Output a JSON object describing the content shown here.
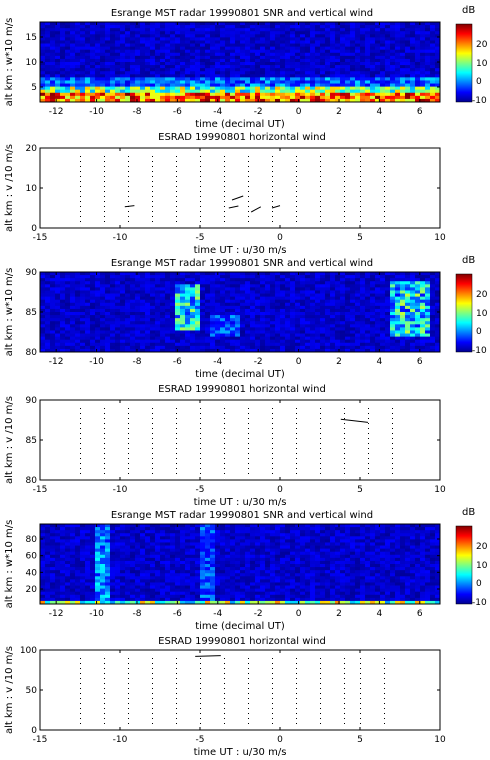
{
  "chart_data": [
    {
      "type": "heatmap",
      "title": "Esrange MST radar 19990801  SNR and vertical wind",
      "xlabel": "time (decimal UT)",
      "ylabel": "alt km : w*10  m/s",
      "xlim": [
        -12.8,
        7
      ],
      "ylim": [
        2,
        18
      ],
      "xticks": [
        "-12",
        "-10",
        "-8",
        "-6",
        "-4",
        "-2",
        "0",
        "2",
        "4",
        "6"
      ],
      "yticks": [
        "5",
        "10",
        "15"
      ],
      "colorbar": {
        "unit": "dB",
        "range": [
          -10,
          30
        ],
        "ticks": [
          "20",
          "10",
          "0",
          "-10"
        ]
      },
      "description_bands": [
        {
          "alt_from": 3,
          "alt_to": 5,
          "snr": 20
        },
        {
          "alt_from": 5,
          "alt_to": 7,
          "snr": 5
        },
        {
          "alt_from": 7,
          "alt_to": 18,
          "snr": -8
        }
      ]
    },
    {
      "type": "line",
      "title": "ESRAD 19990801 horizontal wind",
      "xlabel": "time  UT : u/30   m/s",
      "ylabel": "alt km : v /10  m/s",
      "xlim": [
        -15,
        10
      ],
      "ylim": [
        0,
        20
      ],
      "xticks": [
        "-15",
        "-10",
        "-5",
        "0",
        "5",
        "10"
      ],
      "yticks": [
        "0",
        "10",
        "20"
      ],
      "profile_times": [
        -12.5,
        -11,
        -9.5,
        -8,
        -6.5,
        -5,
        -3.5,
        -2,
        -0.5,
        1,
        2.5,
        4,
        5,
        6.5
      ]
    },
    {
      "type": "heatmap",
      "title": "Esrange MST radar 19990801  SNR and vertical wind",
      "xlabel": "time (decimal UT)",
      "ylabel": "alt km : w*10  m/s",
      "xlim": [
        -12.8,
        7
      ],
      "ylim": [
        80,
        90
      ],
      "xticks": [
        "-12",
        "-10",
        "-8",
        "-6",
        "-4",
        "-2",
        "0",
        "2",
        "4",
        "6"
      ],
      "yticks": [
        "80",
        "85",
        "90"
      ],
      "colorbar": {
        "unit": "dB",
        "range": [
          -10,
          30
        ],
        "ticks": [
          "20",
          "10",
          "0",
          "-10"
        ]
      }
    },
    {
      "type": "line",
      "title": "ESRAD 19990801 horizontal wind",
      "xlabel": "time  UT : u/30   m/s",
      "ylabel": "alt km : v /10  m/s",
      "xlim": [
        -15,
        10
      ],
      "ylim": [
        80,
        90
      ],
      "xticks": [
        "-15",
        "-10",
        "-5",
        "0",
        "5",
        "10"
      ],
      "yticks": [
        "80",
        "85",
        "90"
      ],
      "profile_times": [
        -12.5,
        -11,
        -9.5,
        -8,
        -6.5,
        -5,
        -3.5,
        -2,
        -0.5,
        1,
        2.5,
        4,
        5.5,
        7
      ]
    },
    {
      "type": "heatmap",
      "title": "Esrange MST radar 19990801  SNR and vertical wind",
      "xlabel": "time (decimal UT)",
      "ylabel": "alt km : w*10  m/s",
      "xlim": [
        -12.8,
        7
      ],
      "ylim": [
        2,
        98
      ],
      "xticks": [
        "-12",
        "-10",
        "-8",
        "-6",
        "-4",
        "-2",
        "0",
        "2",
        "4",
        "6"
      ],
      "yticks": [
        "20",
        "40",
        "60",
        "80"
      ],
      "colorbar": {
        "unit": "dB",
        "range": [
          -10,
          30
        ],
        "ticks": [
          "20",
          "10",
          "0",
          "-10"
        ]
      }
    },
    {
      "type": "line",
      "title": "ESRAD 19990801 horizontal wind",
      "xlabel": "time  UT : u/30   m/s",
      "ylabel": "alt km : v /10  m/s",
      "xlim": [
        -15,
        10
      ],
      "ylim": [
        0,
        100
      ],
      "xticks": [
        "-15",
        "-10",
        "-5",
        "0",
        "5",
        "10"
      ],
      "yticks": [
        "0",
        "50",
        "100"
      ],
      "profile_times": [
        -12.5,
        -11,
        -9.5,
        -8,
        -6.5,
        -5,
        -3.5,
        -2,
        -0.5,
        1,
        2.5,
        4,
        5,
        6.5
      ]
    }
  ]
}
